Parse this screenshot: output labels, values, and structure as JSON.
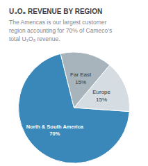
{
  "chart_data": {
    "type": "pie",
    "title": "U₃O₈ REVENUE BY REGION",
    "subtitle": "The Americas is our largest customer\nregion accounting for 70% of Cameco’s\ntotal U₃O₈ revenue.",
    "categories": [
      "North & South America",
      "Far East",
      "Europe"
    ],
    "values": [
      70,
      15,
      15
    ],
    "value_labels": [
      "70%",
      "15%",
      "15%"
    ],
    "colors": [
      "#3a88ba",
      "#a8b4bc",
      "#d5dce2"
    ],
    "data_labels": true
  }
}
